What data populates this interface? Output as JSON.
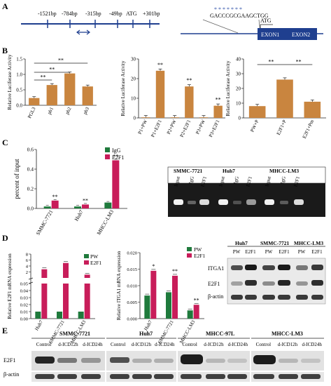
{
  "panels": {
    "A": "A",
    "B": "B",
    "C": "C",
    "D": "D",
    "E": "E"
  },
  "panelA": {
    "positions": [
      "-1521bp",
      "-784bp",
      "-315bp",
      "-49bp",
      "ATG",
      "+301bp"
    ],
    "sequence": "GACCCGCGAAGCTGG",
    "atg": "ATG",
    "exons": [
      "EXON1",
      "EXON2"
    ],
    "colors": {
      "line": "#1f3f8f",
      "exon": "#1f3f8f",
      "star": "#2c4fa8"
    }
  },
  "panelB": {
    "ylabel": "Relative Luciferase Activity",
    "sig": "**",
    "colors": {
      "bar": "#c9853f"
    },
    "chart_data": [
      {
        "type": "bar",
        "categories": [
          "PGL3",
          "pb1",
          "pb2",
          "pb3"
        ],
        "values": [
          0.25,
          0.7,
          1.1,
          0.65
        ],
        "ylabel": "Relative Luciferase Activity",
        "ylim": [
          0,
          1.6
        ],
        "yticks": [
          "0.0",
          "0.5",
          "1.0",
          "1.5"
        ]
      },
      {
        "type": "bar",
        "categories": [
          "P1+PW",
          "P1+E2F1",
          "P2+PW",
          "P2+E2F1",
          "P3+PW",
          "P3+E2F1"
        ],
        "values": [
          0.3,
          24.0,
          0.3,
          16.0,
          0.3,
          6.2
        ],
        "ylabel": "Relative Luciferase Activity",
        "ylim": [
          0,
          30
        ],
        "yticks": [
          "0",
          "10",
          "20",
          "30"
        ]
      },
      {
        "type": "bar",
        "categories": [
          "PW+P",
          "E2F1+P",
          "E2F1+Pm"
        ],
        "values": [
          8.0,
          26.0,
          11.0
        ],
        "ylabel": "Relative Luciferase Activity",
        "ylim": [
          0,
          40
        ],
        "yticks": [
          "0",
          "10",
          "20",
          "30",
          "40"
        ]
      }
    ]
  },
  "panelC": {
    "ylabel": "percent of input",
    "legend": [
      "IgG",
      "E2F1"
    ],
    "colors": {
      "IgG": "#1f7a3c",
      "E2F1": "#c81d5a"
    },
    "chart_data": {
      "type": "bar",
      "categories": [
        "SMMC-7721",
        "Huh7",
        "MHCC-LM3"
      ],
      "series": [
        {
          "name": "IgG",
          "values": [
            0.02,
            0.02,
            0.06
          ]
        },
        {
          "name": "E2F1",
          "values": [
            0.08,
            0.04,
            0.49
          ]
        }
      ],
      "ylim": [
        0,
        0.6
      ],
      "yticks": [
        "0.0",
        "0.2",
        "0.4",
        "0.6"
      ]
    },
    "gel": {
      "groups": [
        "SMMC-7721",
        "Huh7",
        "MHCC-LM3"
      ],
      "lanes": [
        "Input",
        "IgG",
        "E2F1",
        "Input",
        "IgG",
        "E2F1",
        "Input",
        "IgG",
        "E2F1"
      ]
    }
  },
  "panelD": {
    "legend": [
      "PW",
      "E2F1"
    ],
    "colors": {
      "PW": "#1f7a3c",
      "E2F1": "#c81d5a"
    },
    "chart_data": [
      {
        "type": "bar",
        "ylabel": "Relative E2F1 mRNA expression",
        "categories": [
          "Huh7",
          "SMMC-7721",
          "MHCC-LM3"
        ],
        "series": [
          {
            "name": "PW",
            "values": [
              0.01,
              0.01,
              0.01
            ]
          },
          {
            "name": "E2F1",
            "values": [
              2.9,
              5.0,
              1.1
            ]
          }
        ],
        "yticks_upper": [
          "2",
          "4",
          "6",
          "8"
        ],
        "yticks_lower": [
          "0.00",
          "0.01",
          "0.02",
          "0.03",
          "0.04",
          "0.05"
        ]
      },
      {
        "type": "bar",
        "ylabel": "Relative ITGA1 mRNA expression",
        "categories": [
          "Huh7",
          "SMMC-7721",
          "MHCC-LM3"
        ],
        "series": [
          {
            "name": "PW",
            "values": [
              0.007,
              0.008,
              0.0025
            ]
          },
          {
            "name": "E2F1",
            "values": [
              0.0145,
              0.013,
              0.0042
            ]
          }
        ],
        "ylim": [
          0,
          0.02
        ],
        "yticks": [
          "0.000",
          "0.005",
          "0.010",
          "0.015",
          "0.020"
        ],
        "sig": [
          "*",
          "**",
          "**"
        ]
      }
    ],
    "blot": {
      "groups": [
        "Huh7",
        "SMMC-7721",
        "MHCC-LM3"
      ],
      "lanes": [
        "PW",
        "E2F1",
        "PW",
        "E2F1",
        "PW",
        "E2F1"
      ],
      "rows": [
        "ITGA1",
        "E2F1",
        "β-actin"
      ]
    }
  },
  "panelE": {
    "groups": [
      "SMMC-7721",
      "Huh7",
      "MHCC-97L",
      "MHCC-LM3"
    ],
    "lanes": [
      "Control",
      "d-ICD12h",
      "d-ICD24h"
    ],
    "rows": [
      "E2F1",
      "β-actin"
    ]
  }
}
